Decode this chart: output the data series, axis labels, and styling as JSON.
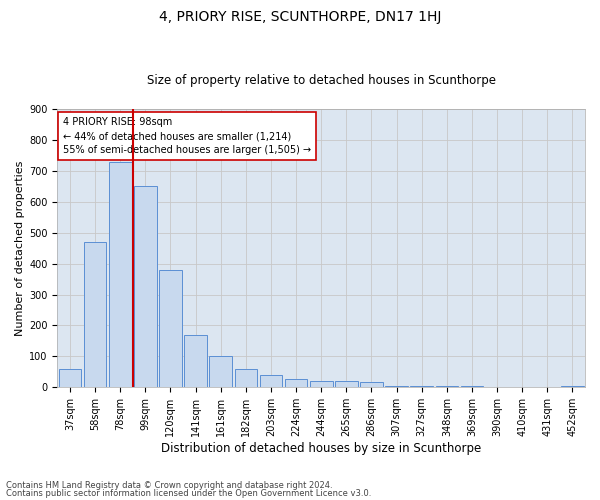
{
  "title": "4, PRIORY RISE, SCUNTHORPE, DN17 1HJ",
  "subtitle": "Size of property relative to detached houses in Scunthorpe",
  "xlabel": "Distribution of detached houses by size in Scunthorpe",
  "ylabel": "Number of detached properties",
  "categories": [
    "37sqm",
    "58sqm",
    "78sqm",
    "99sqm",
    "120sqm",
    "141sqm",
    "161sqm",
    "182sqm",
    "203sqm",
    "224sqm",
    "244sqm",
    "265sqm",
    "286sqm",
    "307sqm",
    "327sqm",
    "348sqm",
    "369sqm",
    "390sqm",
    "410sqm",
    "431sqm",
    "452sqm"
  ],
  "values": [
    60,
    470,
    730,
    650,
    380,
    170,
    100,
    60,
    40,
    27,
    20,
    20,
    18,
    5,
    5,
    3,
    3,
    2,
    2,
    2,
    5
  ],
  "bar_color": "#c8d9ee",
  "bar_edge_color": "#5b8fd4",
  "ylim": [
    0,
    900
  ],
  "yticks": [
    0,
    100,
    200,
    300,
    400,
    500,
    600,
    700,
    800,
    900
  ],
  "property_label": "4 PRIORY RISE: 98sqm",
  "annotation_line1": "← 44% of detached houses are smaller (1,214)",
  "annotation_line2": "55% of semi-detached houses are larger (1,505) →",
  "vline_color": "#cc0000",
  "vline_x_index": 2.5,
  "annotation_box_color": "#ffffff",
  "annotation_box_edge": "#cc0000",
  "grid_color": "#c8c8c8",
  "background_color": "#dce6f1",
  "title_fontsize": 10,
  "subtitle_fontsize": 8.5,
  "ylabel_fontsize": 8,
  "xlabel_fontsize": 8.5,
  "tick_fontsize": 7,
  "annot_fontsize": 7,
  "footer_line1": "Contains HM Land Registry data © Crown copyright and database right 2024.",
  "footer_line2": "Contains public sector information licensed under the Open Government Licence v3.0.",
  "footer_fontsize": 6
}
